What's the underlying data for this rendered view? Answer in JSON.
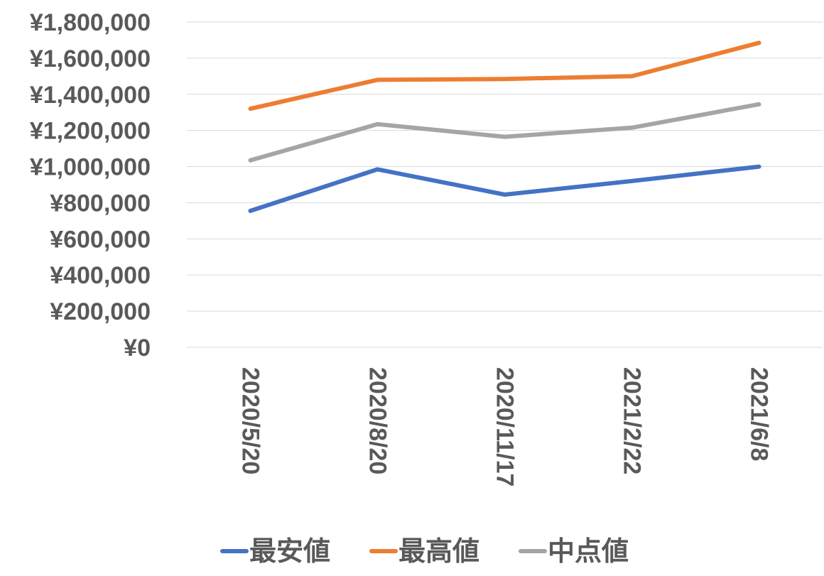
{
  "chart_data": {
    "type": "line",
    "title": "",
    "xlabel": "",
    "ylabel": "",
    "categories": [
      "2020/5/20",
      "2020/8/20",
      "2020/11/17",
      "2021/2/22",
      "2021/6/8"
    ],
    "series": [
      {
        "name": "最安値",
        "color": "#4472c4",
        "values": [
          755000,
          985000,
          845000,
          920000,
          1000000
        ]
      },
      {
        "name": "最高値",
        "color": "#ed7d31",
        "values": [
          1320000,
          1480000,
          1485000,
          1500000,
          1685000
        ]
      },
      {
        "name": "中点値",
        "color": "#a5a5a5",
        "values": [
          1035000,
          1235000,
          1165000,
          1215000,
          1345000
        ]
      }
    ],
    "ylim": [
      0,
      1800000
    ],
    "yticks": [
      0,
      200000,
      400000,
      600000,
      800000,
      1000000,
      1200000,
      1400000,
      1600000,
      1800000
    ],
    "ytick_labels": [
      "¥0",
      "¥200,000",
      "¥400,000",
      "¥600,000",
      "¥800,000",
      "¥1,000,000",
      "¥1,200,000",
      "¥1,400,000",
      "¥1,600,000",
      "¥1,800,000"
    ],
    "grid": true,
    "legend": "bottom"
  }
}
